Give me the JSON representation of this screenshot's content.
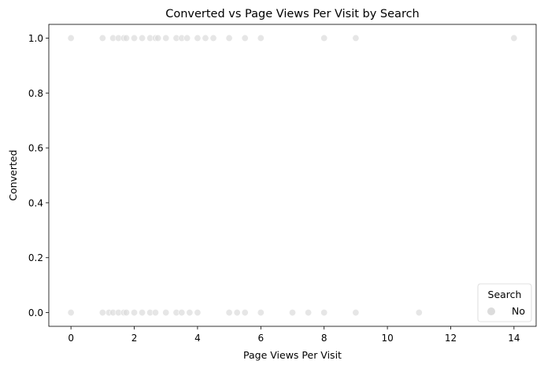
{
  "chart_data": {
    "type": "scatter",
    "title": "Converted vs Page Views Per Visit by Search",
    "xlabel": "Page Views Per Visit",
    "ylabel": "Converted",
    "xlim": [
      -0.7,
      14.7
    ],
    "ylim": [
      -0.05,
      1.05
    ],
    "xticks": [
      0,
      2,
      4,
      6,
      8,
      10,
      12,
      14
    ],
    "xtick_labels": [
      "0",
      "2",
      "4",
      "6",
      "8",
      "10",
      "12",
      "14"
    ],
    "yticks": [
      0.0,
      0.2,
      0.4,
      0.6,
      0.8,
      1.0
    ],
    "ytick_labels": [
      "0.0",
      "0.2",
      "0.4",
      "0.6",
      "0.8",
      "1.0"
    ],
    "grid": false,
    "legend": {
      "title": "Search",
      "placement": "lower-right",
      "entries": [
        "No"
      ]
    },
    "series": [
      {
        "name": "No",
        "color": "#dcdcdc",
        "points": [
          {
            "x": 0,
            "y": 1
          },
          {
            "x": 1,
            "y": 1
          },
          {
            "x": 1.33,
            "y": 1
          },
          {
            "x": 1.5,
            "y": 1
          },
          {
            "x": 1.67,
            "y": 1
          },
          {
            "x": 1.75,
            "y": 1
          },
          {
            "x": 2,
            "y": 1
          },
          {
            "x": 2.25,
            "y": 1
          },
          {
            "x": 2.5,
            "y": 1
          },
          {
            "x": 2.67,
            "y": 1
          },
          {
            "x": 2.75,
            "y": 1
          },
          {
            "x": 3,
            "y": 1
          },
          {
            "x": 3.33,
            "y": 1
          },
          {
            "x": 3.5,
            "y": 1
          },
          {
            "x": 3.67,
            "y": 1
          },
          {
            "x": 4,
            "y": 1
          },
          {
            "x": 4.25,
            "y": 1
          },
          {
            "x": 4.5,
            "y": 1
          },
          {
            "x": 5,
            "y": 1
          },
          {
            "x": 5.5,
            "y": 1
          },
          {
            "x": 6,
            "y": 1
          },
          {
            "x": 8,
            "y": 1
          },
          {
            "x": 9,
            "y": 1
          },
          {
            "x": 14,
            "y": 1
          },
          {
            "x": 0,
            "y": 0
          },
          {
            "x": 1,
            "y": 0
          },
          {
            "x": 1.2,
            "y": 0
          },
          {
            "x": 1.33,
            "y": 0
          },
          {
            "x": 1.5,
            "y": 0
          },
          {
            "x": 1.67,
            "y": 0
          },
          {
            "x": 1.75,
            "y": 0
          },
          {
            "x": 2,
            "y": 0
          },
          {
            "x": 2.25,
            "y": 0
          },
          {
            "x": 2.5,
            "y": 0
          },
          {
            "x": 2.67,
            "y": 0
          },
          {
            "x": 3,
            "y": 0
          },
          {
            "x": 3.33,
            "y": 0
          },
          {
            "x": 3.5,
            "y": 0
          },
          {
            "x": 3.75,
            "y": 0
          },
          {
            "x": 4,
            "y": 0
          },
          {
            "x": 5,
            "y": 0
          },
          {
            "x": 5.25,
            "y": 0
          },
          {
            "x": 5.5,
            "y": 0
          },
          {
            "x": 6,
            "y": 0
          },
          {
            "x": 7,
            "y": 0
          },
          {
            "x": 7.5,
            "y": 0
          },
          {
            "x": 8,
            "y": 0
          },
          {
            "x": 9,
            "y": 0
          },
          {
            "x": 11,
            "y": 0
          }
        ]
      }
    ]
  }
}
